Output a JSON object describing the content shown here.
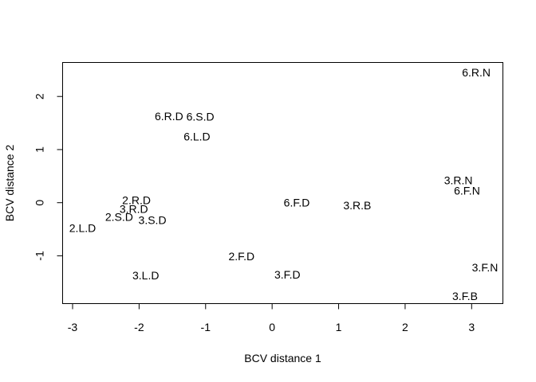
{
  "chart_data": {
    "type": "scatter",
    "title": "",
    "xlabel": "BCV distance 1",
    "ylabel": "BCV distance 2",
    "xlim": [
      -3.15,
      3.47
    ],
    "ylim": [
      -1.9,
      2.64
    ],
    "xticks": [
      -3,
      -2,
      -1,
      0,
      1,
      2,
      3
    ],
    "yticks": [
      -1,
      0,
      1,
      2
    ],
    "grid": false,
    "legend": "none",
    "points": [
      {
        "label": "6.R.N",
        "x": 3.07,
        "y": 2.45
      },
      {
        "label": "6.R.D",
        "x": -1.55,
        "y": 1.63
      },
      {
        "label": "6.S.D",
        "x": -1.08,
        "y": 1.62
      },
      {
        "label": "6.L.D",
        "x": -1.13,
        "y": 1.25
      },
      {
        "label": "3.R.N",
        "x": 2.8,
        "y": 0.42
      },
      {
        "label": "6.F.N",
        "x": 2.93,
        "y": 0.23
      },
      {
        "label": "2.R.D",
        "x": -2.04,
        "y": 0.05
      },
      {
        "label": "6.F.D",
        "x": 0.37,
        "y": 0.0
      },
      {
        "label": "3.R.B",
        "x": 1.28,
        "y": -0.05
      },
      {
        "label": "3.R.D",
        "x": -2.08,
        "y": -0.12
      },
      {
        "label": "2.S.D",
        "x": -2.3,
        "y": -0.27
      },
      {
        "label": "3.S.D",
        "x": -1.8,
        "y": -0.33
      },
      {
        "label": "2.L.D",
        "x": -2.85,
        "y": -0.48
      },
      {
        "label": "2.F.D",
        "x": -0.46,
        "y": -1.01
      },
      {
        "label": "3.F.N",
        "x": 3.2,
        "y": -1.22
      },
      {
        "label": "3.L.D",
        "x": -1.9,
        "y": -1.37
      },
      {
        "label": "3.F.D",
        "x": 0.23,
        "y": -1.35
      },
      {
        "label": "3.F.B",
        "x": 2.9,
        "y": -1.76
      }
    ]
  }
}
